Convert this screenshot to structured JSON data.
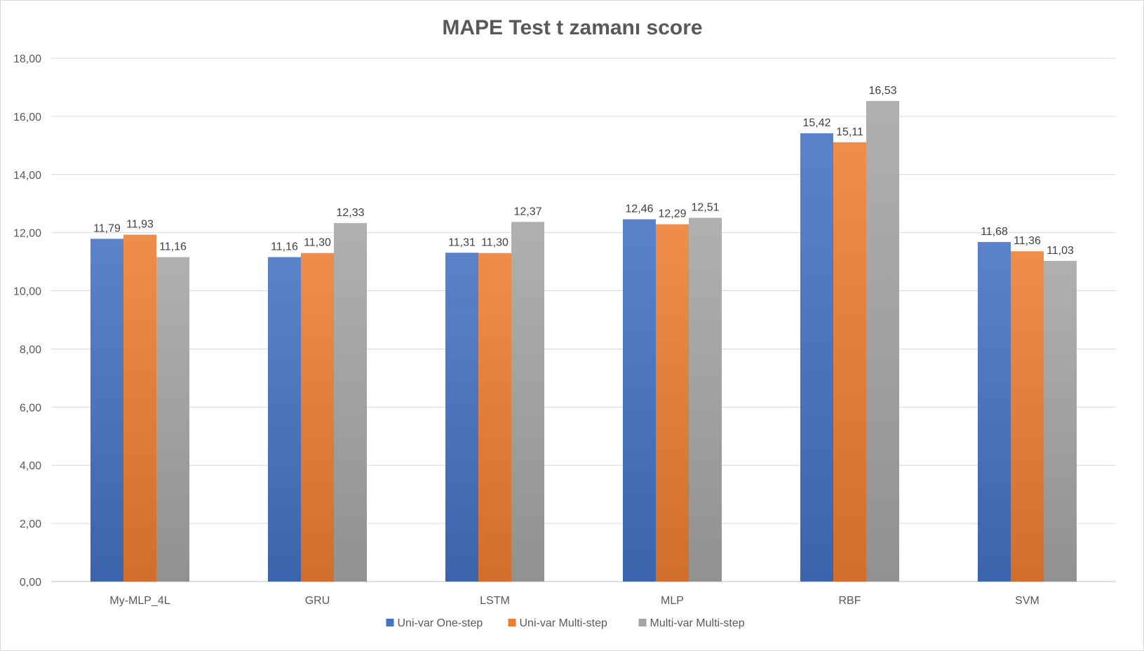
{
  "chart_data": {
    "type": "bar",
    "title": "MAPE Test t zamanı score",
    "xlabel": "",
    "ylabel": "",
    "ylim": [
      0,
      18
    ],
    "yticks": [
      0,
      2,
      4,
      6,
      8,
      10,
      12,
      14,
      16,
      18
    ],
    "ytick_labels": [
      "0,00",
      "2,00",
      "4,00",
      "6,00",
      "8,00",
      "10,00",
      "12,00",
      "14,00",
      "16,00",
      "18,00"
    ],
    "grid": true,
    "legend_position": "bottom",
    "categories": [
      "My-MLP_4L",
      "GRU",
      "LSTM",
      "MLP",
      "RBF",
      "SVM"
    ],
    "series": [
      {
        "name": "Uni-var One-step",
        "color": "#4472c4",
        "values": [
          11.79,
          11.16,
          11.31,
          12.46,
          15.42,
          11.68
        ],
        "labels": [
          "11,79",
          "11,16",
          "11,31",
          "12,46",
          "15,42",
          "11,68"
        ]
      },
      {
        "name": "Uni-var Multi-step",
        "color": "#ed7d31",
        "values": [
          11.93,
          11.3,
          11.3,
          12.29,
          15.11,
          11.36
        ],
        "labels": [
          "11,93",
          "11,30",
          "11,30",
          "12,29",
          "15,11",
          "11,36"
        ]
      },
      {
        "name": "Multi-var Multi-step",
        "color": "#a5a5a5",
        "values": [
          11.16,
          12.33,
          12.37,
          12.51,
          16.53,
          11.03
        ],
        "labels": [
          "11,16",
          "12,33",
          "12,37",
          "12,51",
          "16,53",
          "11,03"
        ]
      }
    ]
  }
}
